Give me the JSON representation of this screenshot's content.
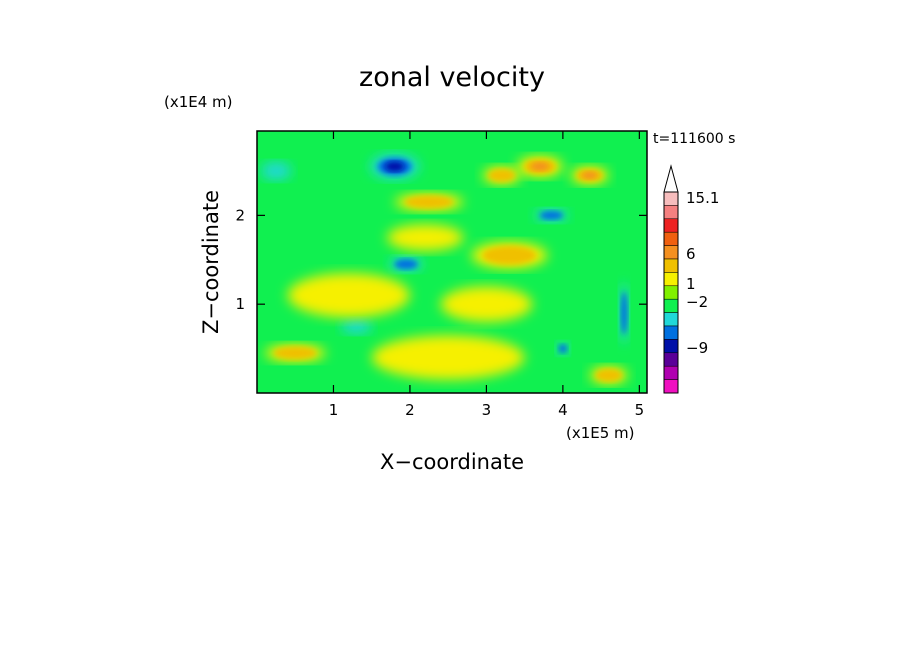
{
  "chart_data": {
    "type": "heatmap",
    "title": "zonal velocity",
    "xlabel": "X−coordinate",
    "ylabel": "Z−coordinate",
    "x_unit": "(x1E5 m)",
    "y_unit": "(x1E4 m)",
    "time_label": "t=111600 s",
    "x_ticks": [
      1,
      2,
      3,
      4,
      5
    ],
    "y_ticks": [
      1,
      2
    ],
    "xlim": [
      0,
      5.1
    ],
    "ylim": [
      0,
      2.95
    ],
    "colorbar": {
      "labels": [
        "15.1",
        "6",
        "1",
        "−2",
        "−9"
      ],
      "label_values": [
        15.1,
        6,
        1,
        -2,
        -9
      ],
      "colors": [
        "#ffffff",
        "#f7bdbd",
        "#f58080",
        "#ee2222",
        "#f06010",
        "#f49020",
        "#f0c000",
        "#f6f000",
        "#80f000",
        "#10f050",
        "#20d8d8",
        "#0070e0",
        "#0010a8",
        "#5a0098",
        "#b000b0",
        "#f010c0"
      ]
    },
    "field_features": [
      {
        "kind": "neg",
        "x": 1.8,
        "z": 2.55,
        "rx": 0.32,
        "rz": 0.14,
        "level": 3
      },
      {
        "kind": "neg",
        "x": 1.95,
        "z": 1.45,
        "rx": 0.22,
        "rz": 0.08,
        "level": 2
      },
      {
        "kind": "neg",
        "x": 3.85,
        "z": 2.0,
        "rx": 0.22,
        "rz": 0.07,
        "level": 2
      },
      {
        "kind": "neg",
        "x": 4.0,
        "z": 0.5,
        "rx": 0.08,
        "rz": 0.07,
        "level": 2
      },
      {
        "kind": "neg",
        "x": 4.8,
        "z": 0.9,
        "rx": 0.06,
        "rz": 0.35,
        "level": 2
      },
      {
        "kind": "neg",
        "x": 0.25,
        "z": 2.5,
        "rx": 0.2,
        "rz": 0.1,
        "level": 1
      },
      {
        "kind": "neg",
        "x": 1.3,
        "z": 0.75,
        "rx": 0.2,
        "rz": 0.08,
        "level": 1
      },
      {
        "kind": "pos",
        "x": 3.7,
        "z": 2.55,
        "rx": 0.3,
        "rz": 0.12,
        "level": 3
      },
      {
        "kind": "pos",
        "x": 4.35,
        "z": 2.45,
        "rx": 0.25,
        "rz": 0.1,
        "level": 3
      },
      {
        "kind": "pos",
        "x": 3.2,
        "z": 2.45,
        "rx": 0.25,
        "rz": 0.1,
        "level": 2
      },
      {
        "kind": "pos",
        "x": 2.25,
        "z": 2.15,
        "rx": 0.45,
        "rz": 0.1,
        "level": 2
      },
      {
        "kind": "pos",
        "x": 3.3,
        "z": 1.55,
        "rx": 0.5,
        "rz": 0.15,
        "level": 2
      },
      {
        "kind": "pos",
        "x": 0.5,
        "z": 0.45,
        "rx": 0.4,
        "rz": 0.1,
        "level": 2
      },
      {
        "kind": "pos",
        "x": 4.6,
        "z": 0.2,
        "rx": 0.25,
        "rz": 0.1,
        "level": 2
      },
      {
        "kind": "pos",
        "x": 2.2,
        "z": 1.75,
        "rx": 0.5,
        "rz": 0.15,
        "level": 1
      },
      {
        "kind": "pos",
        "x": 1.2,
        "z": 1.1,
        "rx": 0.8,
        "rz": 0.25,
        "level": 1
      },
      {
        "kind": "pos",
        "x": 3.0,
        "z": 1.0,
        "rx": 0.6,
        "rz": 0.2,
        "level": 1
      },
      {
        "kind": "pos",
        "x": 2.5,
        "z": 0.4,
        "rx": 1.0,
        "rz": 0.25,
        "level": 1
      }
    ]
  }
}
